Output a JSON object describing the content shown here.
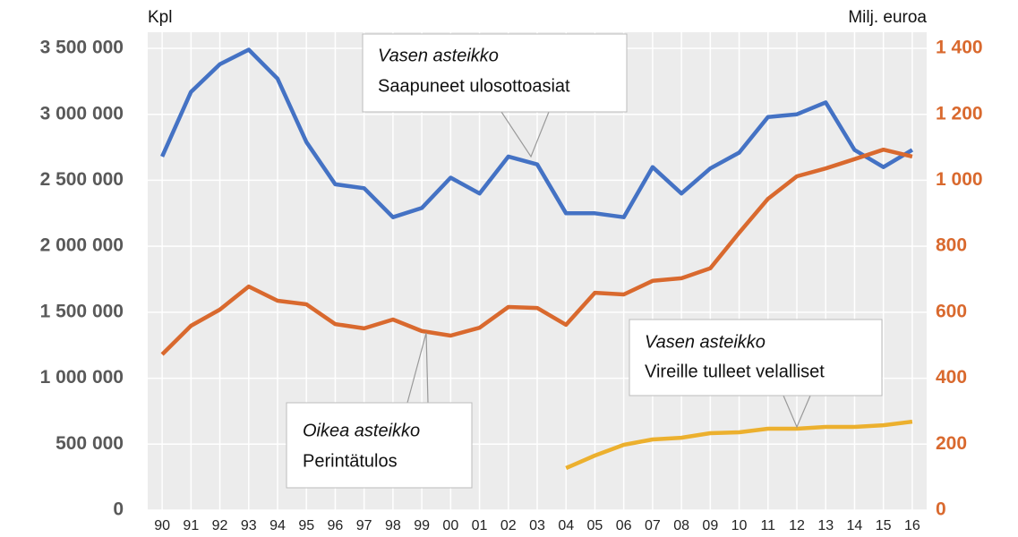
{
  "chart_data": {
    "type": "line",
    "y_label": "Kpl",
    "y2_label": "Milj. euroa",
    "categories": [
      "90",
      "91",
      "92",
      "93",
      "94",
      "95",
      "96",
      "97",
      "98",
      "99",
      "00",
      "01",
      "02",
      "03",
      "04",
      "05",
      "06",
      "07",
      "08",
      "09",
      "10",
      "11",
      "12",
      "13",
      "14",
      "15",
      "16"
    ],
    "series": [
      {
        "name": "Saapuneet ulosottoasiat",
        "color": "#4472c4",
        "axis": "y",
        "values": [
          2680000,
          3170000,
          3380000,
          3490000,
          3270000,
          2790000,
          2470000,
          2440000,
          2220000,
          2290000,
          2520000,
          2400000,
          2680000,
          2620000,
          2250000,
          2250000,
          2220000,
          2600000,
          2400000,
          2590000,
          2710000,
          2980000,
          3000000,
          3090000,
          2730000,
          2600000,
          2730000
        ]
      },
      {
        "name": "Perintätulos",
        "color": "#d9692e",
        "axis": "y2",
        "values": [
          472,
          559,
          608,
          678,
          635,
          624,
          564,
          551,
          578,
          543,
          529,
          553,
          616,
          613,
          562,
          659,
          654,
          695,
          703,
          733,
          841,
          944,
          1012,
          1036,
          1064,
          1093,
          1072
        ]
      },
      {
        "name": "Vireille tulleet velalliset",
        "color": "#ecb02e",
        "axis": "y",
        "values": [
          null,
          null,
          null,
          null,
          null,
          null,
          null,
          null,
          null,
          null,
          null,
          null,
          null,
          null,
          319000,
          414000,
          495000,
          536000,
          549000,
          583000,
          590000,
          617000,
          617000,
          631000,
          631000,
          644000,
          671000
        ]
      }
    ],
    "annotations": [
      {
        "title": "Vasen asteikko",
        "text": "Saapuneet ulosottoasiat"
      },
      {
        "title": "Oikea asteikko",
        "text": "Perintätulos"
      },
      {
        "title": "Vasen asteikko",
        "text": "Vireille tulleet velalliset"
      }
    ],
    "ylim": [
      0,
      3500000
    ],
    "yticks": [
      0,
      {
        "value": 500000,
        "label": "500 000"
      },
      {
        "value": 1000000,
        "label": "1 000 000"
      },
      {
        "value": 1500000,
        "label": "1 500 000"
      },
      {
        "value": 2000000,
        "label": "2 000 000"
      },
      {
        "value": 2500000,
        "label": "2 500 000"
      },
      {
        "value": 3000000,
        "label": "3 000 000"
      },
      {
        "value": 3500000,
        "label": "3 500 000"
      }
    ],
    "y2lim": [
      0,
      1400
    ],
    "y2ticks": [
      0,
      200,
      400,
      600,
      800,
      {
        "value": 1000,
        "label": "1 000"
      },
      {
        "value": 1200,
        "label": "1 200"
      },
      {
        "value": 1400,
        "label": "1 400"
      }
    ],
    "grid": true
  }
}
